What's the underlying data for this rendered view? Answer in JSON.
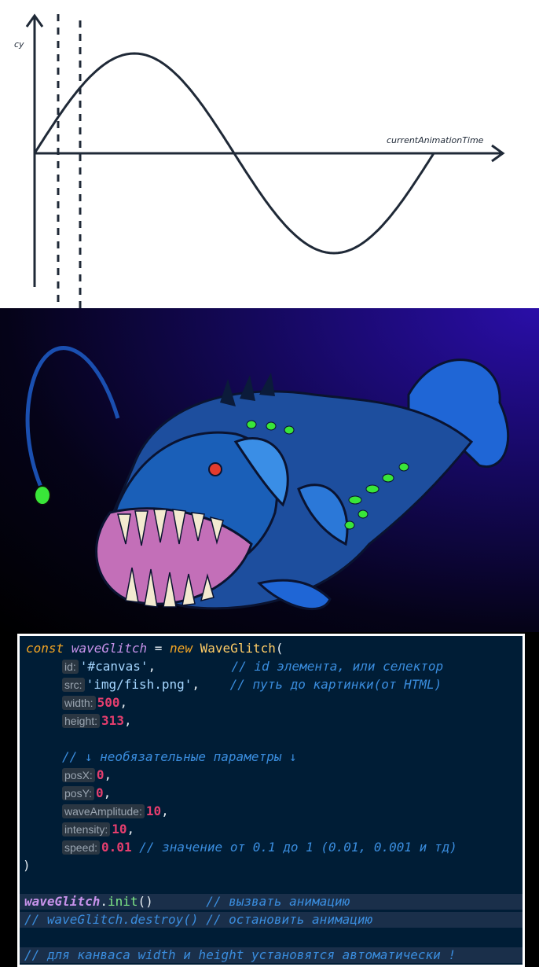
{
  "diagram": {
    "y_axis_label": "cy",
    "x_axis_label": "currentAnimationTime"
  },
  "code": {
    "line1": {
      "kw": "const",
      "var": "waveGlitch",
      "eq": " = ",
      "kw2": "new",
      "cls": "WaveGlitch",
      "paren": "("
    },
    "id": {
      "hint": "id:",
      "value": "'#canvas'",
      "comma": ",",
      "comment": "// id элемента, или селектор"
    },
    "src": {
      "hint": "src:",
      "value": "'img/fish.png'",
      "comma": ",",
      "comment": "// путь до картинки(от HTML)"
    },
    "width": {
      "hint": "width:",
      "value": "500",
      "comma": ","
    },
    "height": {
      "hint": "height:",
      "value": "313",
      "comma": ","
    },
    "optional_comment": "// ↓ необязательные параметры ↓",
    "posX": {
      "hint": "posX:",
      "value": "0",
      "comma": ","
    },
    "posY": {
      "hint": "posY:",
      "value": "0",
      "comma": ","
    },
    "waveAmplitude": {
      "hint": "waveAmplitude:",
      "value": "10",
      "comma": ","
    },
    "intensity": {
      "hint": "intensity:",
      "value": "10",
      "comma": ","
    },
    "speed": {
      "hint": "speed:",
      "value": "0.01",
      "comment": "// значение от 0.1 до 1 (0.01, 0.001 и тд)"
    },
    "close_paren": ")",
    "init_line": {
      "obj": "waveGlitch",
      "dot": ".",
      "method": "init",
      "call": "()",
      "comment": "// вызвать анимацию"
    },
    "destroy_line": {
      "comment": "// waveGlitch.destroy() // остановить анимацию"
    },
    "footer_comment": "// для канваса width и height установятся автоматически !"
  },
  "colors": {
    "code_bg": "#001d36",
    "keyword": "#f5a623",
    "string": "#a5d6ff",
    "number": "#e53e6e",
    "comment": "#3a8dde"
  }
}
